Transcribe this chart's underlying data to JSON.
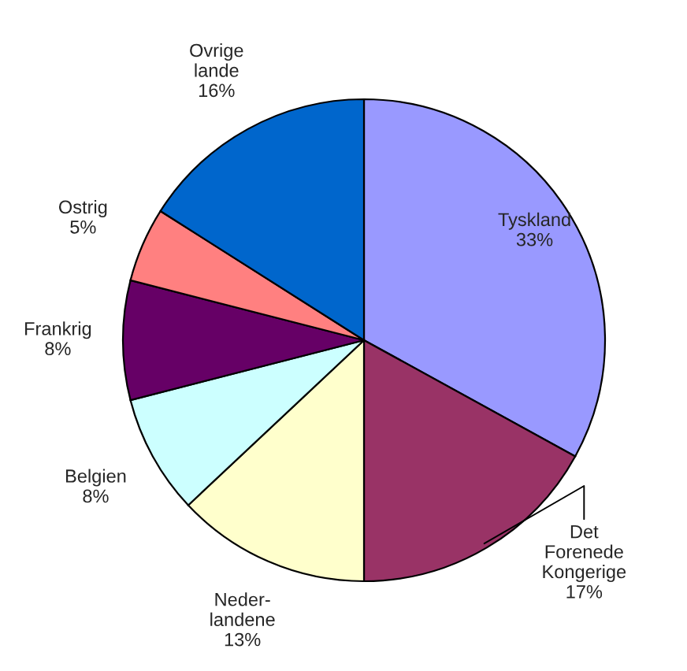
{
  "chart_data": {
    "type": "pie",
    "categories": [
      "Tyskland",
      "Det\nForenede\nKongerige",
      "Neder-\nlandene",
      "Belgien",
      "Frankrig",
      "Ostrig",
      "Ovrige\nlande"
    ],
    "values": [
      33,
      17,
      13,
      8,
      8,
      5,
      16
    ],
    "value_labels": [
      "33%",
      "17%",
      "13%",
      "8%",
      "8%",
      "5%",
      "16%"
    ],
    "colors": [
      "#9999ff",
      "#993366",
      "#ffffcc",
      "#ccffff",
      "#660066",
      "#ff8080",
      "#0066cc"
    ],
    "legend": false
  }
}
